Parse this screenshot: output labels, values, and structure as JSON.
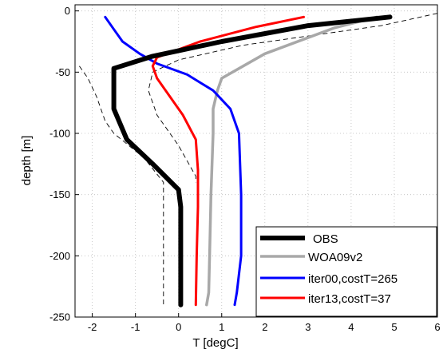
{
  "chart_data": {
    "type": "line",
    "title": "",
    "xlabel": "T [degC]",
    "ylabel": "depth [m]",
    "xlim": [
      -2.4,
      6
    ],
    "ylim": [
      -250,
      5
    ],
    "xticks": [
      -2,
      -1,
      0,
      1,
      2,
      3,
      4,
      5,
      6
    ],
    "yticks": [
      0,
      -50,
      -100,
      -150,
      -200,
      -250
    ],
    "grid": true,
    "legend_position": "bottom-right",
    "series": [
      {
        "name": "OBS",
        "color": "#000000",
        "x": [
          4.9,
          3.0,
          1.0,
          -0.6,
          -1.5,
          -1.5,
          -1.5,
          -1.2,
          -0.6,
          0.0,
          0.05,
          0.05,
          0.05
        ],
        "y": [
          -5,
          -12,
          -25,
          -37,
          -47,
          -60,
          -80,
          -105,
          -125,
          -146,
          -160,
          -200,
          -240
        ]
      },
      {
        "name": "WOA09v2",
        "color": "#a8a8a8",
        "x": [
          4.6,
          3.6,
          2.0,
          1.0,
          0.9,
          0.8,
          0.8,
          0.75,
          0.72,
          0.7,
          0.65
        ],
        "y": [
          -5,
          -14,
          -35,
          -55,
          -65,
          -80,
          -100,
          -150,
          -200,
          -230,
          -240
        ]
      },
      {
        "name": "iter00,costT=265",
        "color": "#0000ff",
        "x": [
          -1.7,
          -1.5,
          -1.3,
          -0.9,
          -0.5,
          0.2,
          0.8,
          1.2,
          1.4,
          1.45,
          1.45,
          1.35,
          1.3
        ],
        "y": [
          -5,
          -15,
          -25,
          -35,
          -43,
          -52,
          -65,
          -80,
          -100,
          -150,
          -200,
          -230,
          -240
        ]
      },
      {
        "name": "iter13,costT=37",
        "color": "#ff0000",
        "x": [
          2.9,
          1.8,
          0.5,
          -0.5,
          -0.6,
          -0.5,
          -0.2,
          0.1,
          0.4,
          0.45,
          0.45,
          0.42,
          0.4
        ],
        "y": [
          -5,
          -13,
          -25,
          -38,
          -45,
          -55,
          -70,
          -85,
          -105,
          -130,
          -160,
          -200,
          -240
        ]
      }
    ],
    "dashed_envelope": {
      "color": "#000000",
      "left": {
        "x": [
          -2.3,
          -2.1,
          -1.9,
          -1.7,
          -1.5,
          -0.8,
          -0.35,
          -0.35,
          -0.35
        ],
        "y": [
          -45,
          -55,
          -70,
          -90,
          -100,
          -120,
          -140,
          -150,
          -240
        ]
      },
      "right": {
        "x": [
          6.0,
          4.7,
          1.5,
          0.0,
          -0.6,
          -0.7,
          -0.5,
          0.0,
          0.4,
          0.4
        ],
        "y": [
          -2,
          -12,
          -28,
          -40,
          -50,
          -65,
          -85,
          -110,
          -135,
          -140
        ]
      }
    }
  }
}
